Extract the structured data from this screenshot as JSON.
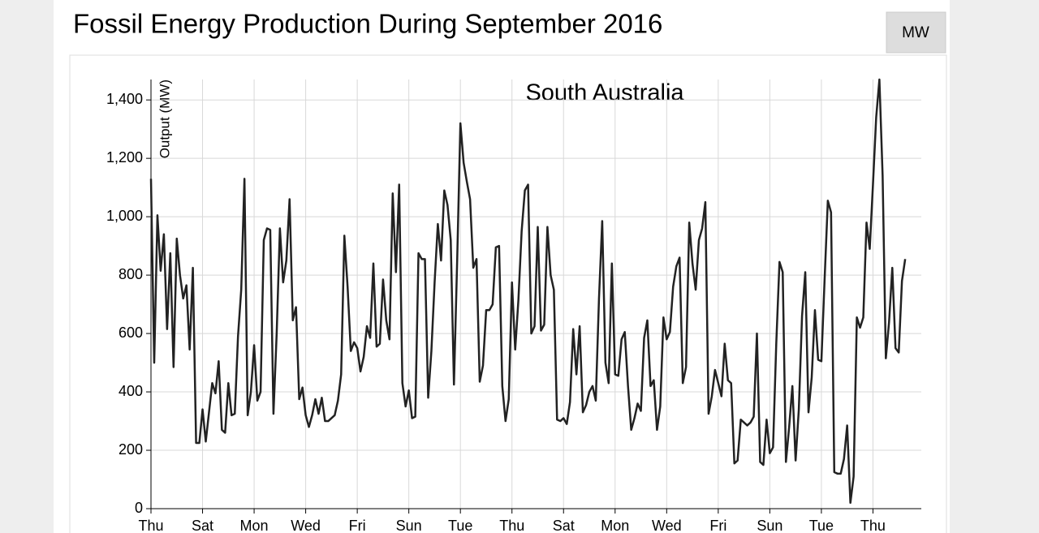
{
  "chart_data": {
    "type": "line",
    "title": "Fossil Energy Production During September 2016",
    "button": "MW",
    "subtitle": "South Australia",
    "ylabel": "Output (MW)",
    "x": [
      0,
      3,
      6,
      9,
      12,
      15,
      18,
      21,
      24,
      27,
      30,
      33,
      36,
      39,
      42,
      45,
      48,
      51,
      54,
      57,
      60,
      63,
      66,
      69,
      72,
      75,
      78,
      81,
      84,
      87,
      90,
      93,
      96,
      99,
      102,
      105,
      108,
      111,
      114,
      117,
      120,
      123,
      126,
      129,
      132,
      135,
      138,
      141,
      144,
      147,
      150,
      153,
      156,
      159,
      162,
      165,
      168,
      171,
      174,
      177,
      180,
      183,
      186,
      189,
      192,
      195,
      198,
      201,
      204,
      207,
      210,
      213,
      216,
      219,
      222,
      225,
      228,
      231,
      234,
      237,
      240,
      243,
      246,
      249,
      252,
      255,
      258,
      261,
      264,
      267,
      270,
      273,
      276,
      279,
      282,
      285,
      288,
      291,
      294,
      297,
      300,
      303,
      306,
      309,
      312,
      315,
      318,
      321,
      324,
      327,
      330,
      333,
      336,
      339,
      342,
      345,
      348,
      351,
      354,
      357,
      360,
      363,
      366,
      369,
      372,
      375,
      378,
      381,
      384,
      387,
      390,
      393,
      396,
      399,
      402,
      405,
      408,
      411,
      414,
      417,
      420,
      423,
      426,
      429,
      432,
      435,
      438,
      441,
      444,
      447,
      450,
      453,
      456,
      459,
      462,
      465,
      468,
      471,
      474,
      477,
      480,
      483,
      486,
      489,
      492,
      495,
      498,
      501,
      504,
      507,
      510,
      513,
      516,
      519,
      522,
      525,
      528,
      531,
      534,
      537,
      540,
      543,
      546,
      549,
      552,
      555,
      558,
      561,
      564,
      567,
      570,
      573,
      576,
      579,
      582,
      585,
      588,
      591,
      594,
      597,
      600,
      603,
      606,
      609,
      612,
      615,
      618,
      621,
      624,
      627,
      630,
      633,
      636,
      639,
      642,
      645,
      648,
      651,
      654,
      657,
      660,
      663,
      666,
      669,
      672,
      675,
      678,
      681,
      684,
      687,
      690,
      693,
      696,
      699,
      702
    ],
    "series": [
      {
        "name": "South Australia",
        "color": "#222222",
        "values": [
          1130,
          500,
          1005,
          815,
          940,
          615,
          875,
          485,
          925,
          800,
          720,
          765,
          545,
          825,
          225,
          225,
          340,
          230,
          330,
          430,
          395,
          505,
          270,
          260,
          430,
          320,
          325,
          590,
          750,
          1130,
          320,
          400,
          560,
          370,
          400,
          920,
          960,
          955,
          325,
          600,
          960,
          775,
          850,
          1060,
          645,
          690,
          375,
          415,
          320,
          280,
          320,
          375,
          325,
          380,
          300,
          300,
          310,
          320,
          370,
          460,
          935,
          760,
          540,
          570,
          550,
          470,
          520,
          625,
          585,
          840,
          555,
          565,
          785,
          645,
          580,
          1080,
          810,
          1110,
          430,
          350,
          405,
          310,
          315,
          875,
          855,
          855,
          380,
          540,
          775,
          975,
          850,
          1090,
          1040,
          920,
          425,
          850,
          1320,
          1185,
          1120,
          1060,
          825,
          855,
          435,
          490,
          680,
          680,
          700,
          895,
          900,
          420,
          300,
          375,
          775,
          545,
          715,
          950,
          1090,
          1110,
          600,
          625,
          965,
          610,
          630,
          965,
          800,
          750,
          305,
          300,
          310,
          290,
          365,
          615,
          460,
          625,
          330,
          355,
          400,
          420,
          370,
          720,
          985,
          500,
          430,
          840,
          460,
          455,
          580,
          605,
          420,
          270,
          310,
          360,
          335,
          585,
          645,
          420,
          440,
          270,
          350,
          655,
          580,
          605,
          760,
          830,
          860,
          430,
          485,
          980,
          840,
          750,
          920,
          960,
          1050,
          325,
          385,
          475,
          430,
          385,
          565,
          440,
          430,
          155,
          165,
          305,
          295,
          285,
          295,
          315,
          600,
          160,
          150,
          305,
          190,
          210,
          565,
          845,
          810,
          160,
          280,
          420,
          165,
          340,
          660,
          810,
          330,
          450,
          680,
          510,
          505,
          785,
          1055,
          1015,
          125,
          120,
          120,
          170,
          285,
          20,
          110,
          655,
          620,
          655,
          980,
          890,
          1110,
          1340,
          1470,
          1140,
          515,
          640,
          825,
          550,
          535,
          780,
          855
        ]
      }
    ],
    "xlim": [
      0,
      717
    ],
    "xticks": [
      {
        "value": 0,
        "label": "Thu"
      },
      {
        "value": 48,
        "label": "Sat"
      },
      {
        "value": 96,
        "label": "Mon"
      },
      {
        "value": 144,
        "label": "Wed"
      },
      {
        "value": 192,
        "label": "Fri"
      },
      {
        "value": 240,
        "label": "Sun"
      },
      {
        "value": 288,
        "label": "Tue"
      },
      {
        "value": 336,
        "label": "Thu"
      },
      {
        "value": 384,
        "label": "Sat"
      },
      {
        "value": 432,
        "label": "Mon"
      },
      {
        "value": 480,
        "label": "Wed"
      },
      {
        "value": 528,
        "label": "Fri"
      },
      {
        "value": 576,
        "label": "Sun"
      },
      {
        "value": 624,
        "label": "Tue"
      },
      {
        "value": 672,
        "label": "Thu"
      }
    ],
    "ylim": [
      0,
      1470
    ],
    "yticks": [
      0,
      200,
      400,
      600,
      800,
      {
        "value": 1000,
        "label": "1,000"
      },
      {
        "value": 1200,
        "label": "1,200"
      },
      {
        "value": 1400,
        "label": "1,400"
      }
    ],
    "grid": true
  }
}
